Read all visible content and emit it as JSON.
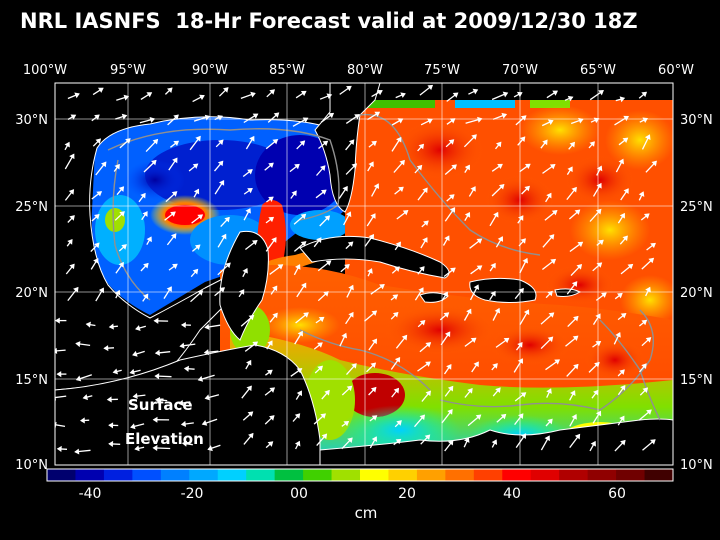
{
  "title": "NRL IASNFS  18-Hr Forecast valid at 2009/12/30 18Z",
  "lon_labels": [
    "100°W",
    "95°W",
    "90°W",
    "85°W",
    "80°W",
    "75°W",
    "70°W",
    "65°W",
    "60°W"
  ],
  "lat_labels": [
    "30°N",
    "25°N",
    "20°N",
    "15°N",
    "10°N"
  ],
  "map_label": {
    "line1": "Surface",
    "line2": "Elevation"
  },
  "colorbar": {
    "unit": "cm",
    "tick_labels": [
      "-40",
      "-20",
      "00",
      "20",
      "40",
      "60"
    ],
    "colors": [
      "#00006e",
      "#0000b0",
      "#0020e0",
      "#0050ff",
      "#0080ff",
      "#00a8ff",
      "#00d0ff",
      "#00e0b0",
      "#00c040",
      "#40d000",
      "#a0e000",
      "#ffff00",
      "#ffd000",
      "#ffa000",
      "#ff7000",
      "#ff4000",
      "#ff0000",
      "#e00000",
      "#b00000",
      "#900000",
      "#700000",
      "#400000"
    ]
  },
  "colors": {
    "ocean_low": "#0000b0",
    "ocean_high": "#ff0000",
    "land": "#000000",
    "wind_arrow": "#ffffff",
    "contour": "#909090"
  },
  "icons": {
    "wind_vectors": "wind-arrow-icon"
  }
}
